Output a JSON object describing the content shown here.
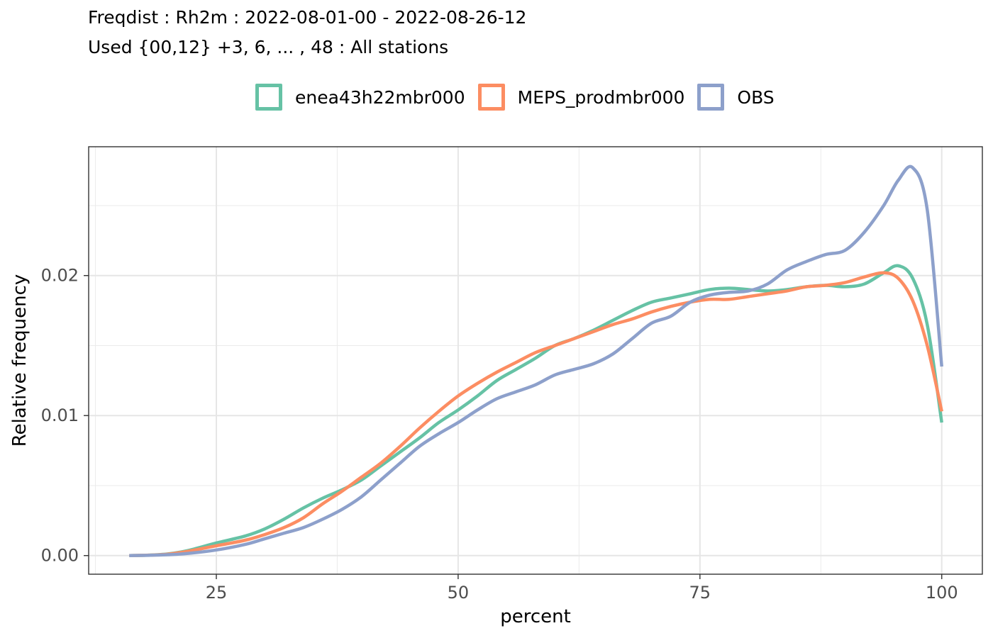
{
  "chart_data": {
    "type": "line",
    "title": "Freqdist : Rh2m : 2022-08-01-00 - 2022-08-26-12",
    "subtitle": "Used {00,12} +3, 6, ... , 48 : All stations",
    "xlabel": "percent",
    "ylabel": "Relative frequency",
    "xlim": [
      11.8,
      104.2
    ],
    "ylim": [
      -0.00133,
      0.0292
    ],
    "x_ticks": [
      25,
      50,
      75,
      100
    ],
    "x_tick_labels": [
      "25",
      "50",
      "75",
      "100"
    ],
    "y_ticks": [
      0,
      0.01,
      0.02
    ],
    "y_tick_labels": [
      "0.00",
      "0.01",
      "0.02"
    ],
    "grid": true,
    "legend_position": "top",
    "series": [
      {
        "name": "enea43h22mbr000",
        "color": "#66C2A5",
        "points": [
          [
            16,
            0
          ],
          [
            18,
            3e-05
          ],
          [
            20,
            0.00012
          ],
          [
            22,
            0.00035
          ],
          [
            25,
            0.0009
          ],
          [
            28,
            0.0014
          ],
          [
            30,
            0.0019
          ],
          [
            32,
            0.0026
          ],
          [
            34,
            0.0034
          ],
          [
            36,
            0.0041
          ],
          [
            38,
            0.0047
          ],
          [
            40,
            0.0054
          ],
          [
            42,
            0.0064
          ],
          [
            44,
            0.0074
          ],
          [
            46,
            0.0084
          ],
          [
            48,
            0.0095
          ],
          [
            50,
            0.0104
          ],
          [
            52,
            0.0114
          ],
          [
            54,
            0.0125
          ],
          [
            56,
            0.0133
          ],
          [
            58,
            0.0141
          ],
          [
            60,
            0.015
          ],
          [
            62,
            0.0155
          ],
          [
            64,
            0.0161
          ],
          [
            66,
            0.0168
          ],
          [
            68,
            0.0175
          ],
          [
            70,
            0.0181
          ],
          [
            72,
            0.0184
          ],
          [
            74,
            0.0187
          ],
          [
            76,
            0.019
          ],
          [
            78,
            0.0191
          ],
          [
            80,
            0.019
          ],
          [
            82,
            0.0189
          ],
          [
            84,
            0.019
          ],
          [
            86,
            0.0192
          ],
          [
            88,
            0.0193
          ],
          [
            90,
            0.0192
          ],
          [
            92,
            0.0194
          ],
          [
            94,
            0.0202
          ],
          [
            95.5,
            0.0207
          ],
          [
            97,
            0.0198
          ],
          [
            98.5,
            0.0165
          ],
          [
            100,
            0.0095
          ]
        ]
      },
      {
        "name": "MEPS_prodmbr000",
        "color": "#FC8D62",
        "points": [
          [
            16,
            0
          ],
          [
            18,
            3e-05
          ],
          [
            20,
            0.0001
          ],
          [
            22,
            0.0003
          ],
          [
            25,
            0.0007
          ],
          [
            28,
            0.0011
          ],
          [
            30,
            0.0015
          ],
          [
            32,
            0.002
          ],
          [
            34,
            0.0027
          ],
          [
            36,
            0.0037
          ],
          [
            38,
            0.0046
          ],
          [
            40,
            0.0056
          ],
          [
            42,
            0.0066
          ],
          [
            44,
            0.0078
          ],
          [
            46,
            0.0091
          ],
          [
            48,
            0.0103
          ],
          [
            50,
            0.0114
          ],
          [
            52,
            0.0123
          ],
          [
            54,
            0.0131
          ],
          [
            56,
            0.0138
          ],
          [
            58,
            0.0145
          ],
          [
            60,
            0.015
          ],
          [
            62,
            0.0155
          ],
          [
            64,
            0.016
          ],
          [
            66,
            0.0165
          ],
          [
            68,
            0.0169
          ],
          [
            70,
            0.0174
          ],
          [
            72,
            0.0178
          ],
          [
            74,
            0.0181
          ],
          [
            76,
            0.0183
          ],
          [
            78,
            0.0183
          ],
          [
            80,
            0.0185
          ],
          [
            82,
            0.0187
          ],
          [
            84,
            0.0189
          ],
          [
            86,
            0.0192
          ],
          [
            88,
            0.0193
          ],
          [
            90,
            0.0195
          ],
          [
            92,
            0.0199
          ],
          [
            94,
            0.0202
          ],
          [
            95.5,
            0.0198
          ],
          [
            97,
            0.0182
          ],
          [
            98.5,
            0.015
          ],
          [
            100,
            0.0103
          ]
        ]
      },
      {
        "name": "OBS",
        "color": "#8DA0CB",
        "points": [
          [
            16,
            0
          ],
          [
            18,
            2e-05
          ],
          [
            20,
            6e-05
          ],
          [
            22,
            0.00015
          ],
          [
            25,
            0.0004
          ],
          [
            28,
            0.0008
          ],
          [
            30,
            0.0012
          ],
          [
            32,
            0.0016
          ],
          [
            34,
            0.002
          ],
          [
            36,
            0.0026
          ],
          [
            38,
            0.0033
          ],
          [
            40,
            0.0042
          ],
          [
            42,
            0.0054
          ],
          [
            44,
            0.0066
          ],
          [
            46,
            0.0078
          ],
          [
            48,
            0.0087
          ],
          [
            50,
            0.0095
          ],
          [
            52,
            0.0104
          ],
          [
            54,
            0.0112
          ],
          [
            56,
            0.0117
          ],
          [
            58,
            0.0122
          ],
          [
            60,
            0.0129
          ],
          [
            62,
            0.0133
          ],
          [
            64,
            0.0137
          ],
          [
            66,
            0.0144
          ],
          [
            68,
            0.0155
          ],
          [
            70,
            0.0166
          ],
          [
            72,
            0.0171
          ],
          [
            74,
            0.0181
          ],
          [
            76,
            0.0186
          ],
          [
            78,
            0.0188
          ],
          [
            80,
            0.0189
          ],
          [
            82,
            0.0194
          ],
          [
            84,
            0.0204
          ],
          [
            86,
            0.021
          ],
          [
            88,
            0.0215
          ],
          [
            90,
            0.0218
          ],
          [
            92,
            0.0231
          ],
          [
            94,
            0.025
          ],
          [
            95.5,
            0.0268
          ],
          [
            97,
            0.0277
          ],
          [
            98.5,
            0.0247
          ],
          [
            100,
            0.0135
          ]
        ]
      }
    ]
  }
}
